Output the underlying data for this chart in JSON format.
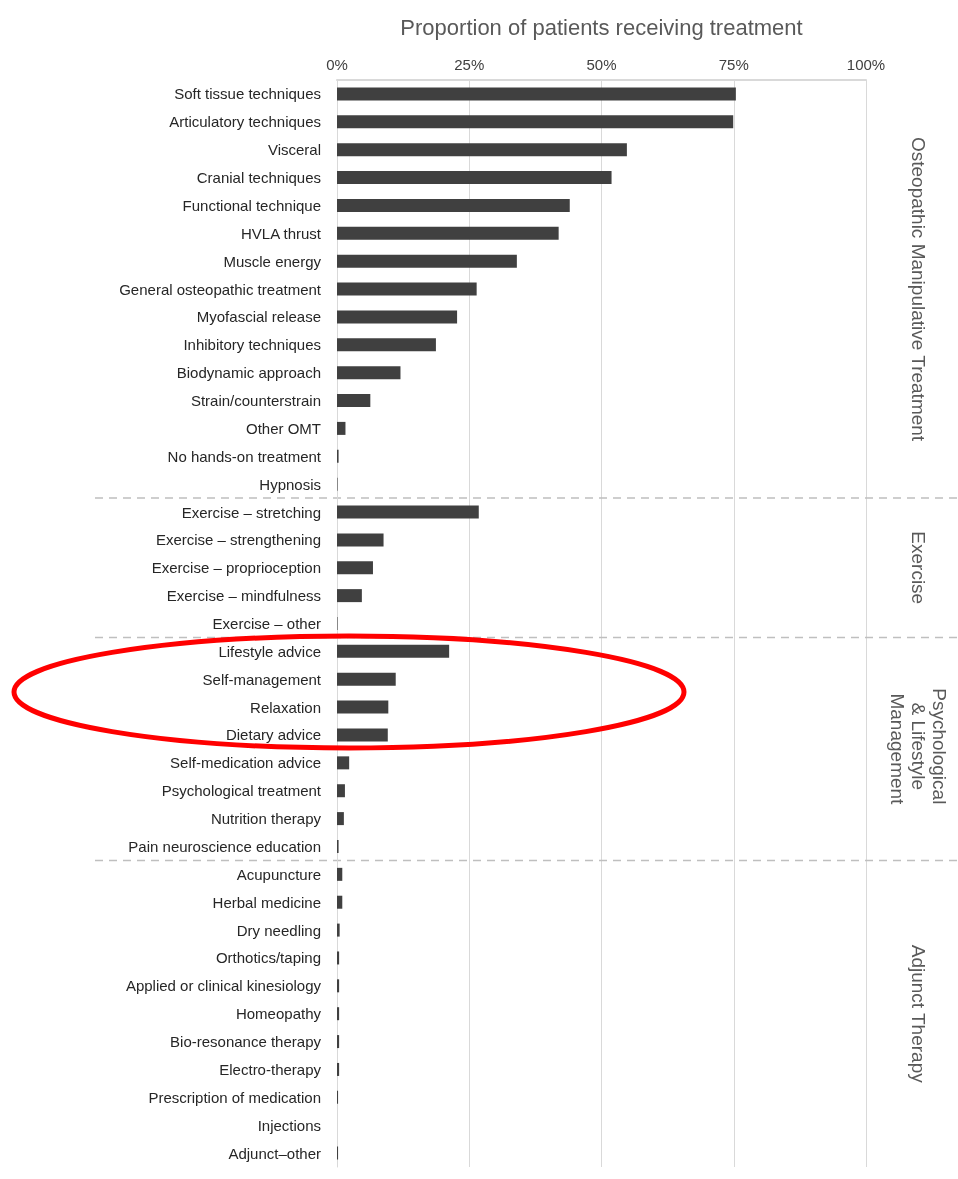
{
  "chart_data": {
    "type": "bar",
    "orientation": "horizontal",
    "xlabel": "Proportion of patients receiving treatment",
    "categories": [
      "Soft tissue techniques",
      "Articulatory techniques",
      "Visceral",
      "Cranial techniques",
      "Functional technique",
      "HVLA thrust",
      "Muscle energy",
      "General osteopathic treatment",
      "Myofascial release",
      "Inhibitory techniques",
      "Biodynamic approach",
      "Strain/counterstrain",
      "Other OMT",
      "No hands-on treatment",
      "Hypnosis",
      "Exercise – stretching",
      "Exercise – strengthening",
      "Exercise – proprioception",
      "Exercise – mindfulness",
      "Exercise – other",
      "Lifestyle advice",
      "Self-management",
      "Relaxation",
      "Dietary advice",
      "Self-medication advice",
      "Psychological treatment",
      "Nutrition therapy",
      "Pain neuroscience education",
      "Acupuncture",
      "Herbal medicine",
      "Dry needling",
      "Orthotics/taping",
      "Applied or clinical kinesiology",
      "Homeopathy",
      "Bio-resonance therapy",
      "Electro-therapy",
      "Prescription of medication",
      "Injections",
      "Adjunct–other"
    ],
    "values": [
      75.4,
      74.9,
      54.8,
      51.9,
      44.0,
      41.9,
      34.0,
      26.4,
      22.7,
      18.7,
      12.0,
      6.3,
      1.6,
      0.3,
      0.1,
      26.8,
      8.8,
      6.8,
      4.7,
      0.1,
      21.2,
      11.1,
      9.7,
      9.6,
      2.3,
      1.5,
      1.3,
      0.3,
      1.0,
      1.0,
      0.5,
      0.4,
      0.4,
      0.4,
      0.4,
      0.4,
      0.2,
      0,
      0.2
    ],
    "color": "#404040",
    "xlim": [
      0,
      100
    ],
    "xticks": [
      {
        "value": 0,
        "label": "0%"
      },
      {
        "value": 25,
        "label": "25%"
      },
      {
        "value": 50,
        "label": "50%"
      },
      {
        "value": 75,
        "label": "75%"
      },
      {
        "value": 100,
        "label": "100%"
      }
    ],
    "grid": "x",
    "annotations": [
      "Osteopathic Manipulative Treatment",
      "Exercise",
      "Psychological & Lifestyle Management",
      "Adjunct Therapy"
    ]
  }
}
